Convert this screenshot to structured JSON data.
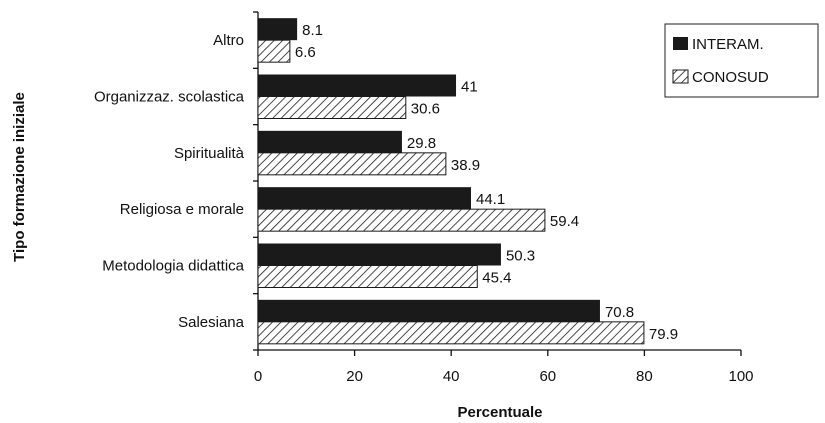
{
  "chart_data": {
    "type": "bar",
    "orientation": "horizontal",
    "title": "",
    "xlabel": "Percentuale",
    "ylabel": "Tipo formazione iniziale",
    "xlim": [
      0,
      100
    ],
    "xticks": [
      0,
      20,
      40,
      60,
      80,
      100
    ],
    "categories": [
      "Altro",
      "Organizzaz. scolastica",
      "Spiritualità",
      "Religiosa e morale",
      "Metodologia didattica",
      "Salesiana"
    ],
    "series": [
      {
        "name": "INTERAM.",
        "values": [
          8.1,
          41,
          29.8,
          44.1,
          50.3,
          70.8
        ],
        "fill": "solid",
        "color": "#1a1a1a"
      },
      {
        "name": "CONOSUD",
        "values": [
          6.6,
          30.6,
          38.9,
          59.4,
          45.4,
          79.9
        ],
        "fill": "hatched",
        "color": "#1a1a1a"
      }
    ],
    "grid": false,
    "legend_position": "top-right"
  }
}
